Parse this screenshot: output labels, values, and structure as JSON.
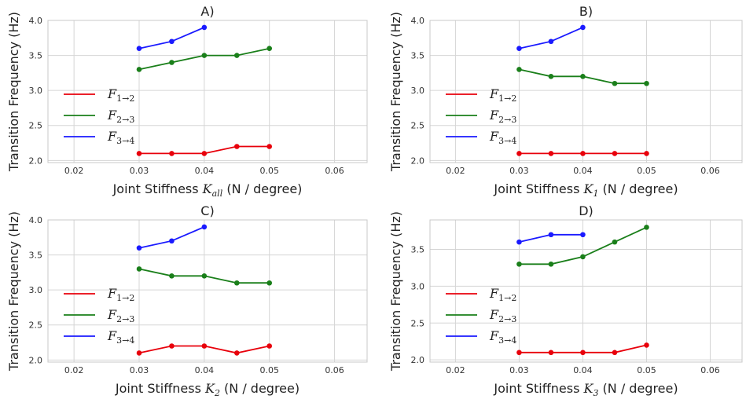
{
  "chart_data": [
    {
      "type": "line",
      "title": "A)",
      "xlabel": "Joint Stiffness",
      "xlabel_symbol": "K",
      "xlabel_symbol_sub": "all",
      "xlabel_unit": "(N / degree)",
      "ylabel": "Transition Frequency (Hz)",
      "xlim": [
        0.016,
        0.065
      ],
      "ylim": [
        1.97,
        4.0
      ],
      "xticks": [
        0.02,
        0.03,
        0.04,
        0.05,
        0.06
      ],
      "xtick_labels": [
        "0.02",
        "0.03",
        "0.04",
        "0.05",
        "0.06"
      ],
      "yticks": [
        2.0,
        2.5,
        3.0,
        3.5,
        4.0
      ],
      "ytick_labels": [
        "2.0",
        "2.5",
        "3.0",
        "3.5",
        "4.0"
      ],
      "grid": true,
      "legend_position": "center-left",
      "series": [
        {
          "name": "F",
          "sub": "1→2",
          "color": "#e8000b",
          "x": [
            0.03,
            0.035,
            0.04,
            0.045,
            0.05
          ],
          "y": [
            2.1,
            2.1,
            2.1,
            2.2,
            2.2
          ]
        },
        {
          "name": "F",
          "sub": "2→3",
          "color": "#1a7f1a",
          "x": [
            0.03,
            0.035,
            0.04,
            0.045,
            0.05
          ],
          "y": [
            3.3,
            3.4,
            3.5,
            3.5,
            3.6
          ]
        },
        {
          "name": "F",
          "sub": "3→4",
          "color": "#1a1aff",
          "x": [
            0.03,
            0.035,
            0.04
          ],
          "y": [
            3.6,
            3.7,
            3.9
          ]
        }
      ]
    },
    {
      "type": "line",
      "title": "B)",
      "xlabel": "Joint Stiffness",
      "xlabel_symbol": "K",
      "xlabel_symbol_sub": "1",
      "xlabel_unit": "(N / degree)",
      "ylabel": "Transition Frequency (Hz)",
      "xlim": [
        0.016,
        0.065
      ],
      "ylim": [
        1.97,
        4.0
      ],
      "xticks": [
        0.02,
        0.03,
        0.04,
        0.05,
        0.06
      ],
      "xtick_labels": [
        "0.02",
        "0.03",
        "0.04",
        "0.05",
        "0.06"
      ],
      "yticks": [
        2.0,
        2.5,
        3.0,
        3.5,
        4.0
      ],
      "ytick_labels": [
        "2.0",
        "2.5",
        "3.0",
        "3.5",
        "4.0"
      ],
      "grid": true,
      "legend_position": "center-left",
      "series": [
        {
          "name": "F",
          "sub": "1→2",
          "color": "#e8000b",
          "x": [
            0.03,
            0.035,
            0.04,
            0.045,
            0.05
          ],
          "y": [
            2.1,
            2.1,
            2.1,
            2.1,
            2.1
          ]
        },
        {
          "name": "F",
          "sub": "2→3",
          "color": "#1a7f1a",
          "x": [
            0.03,
            0.035,
            0.04,
            0.045,
            0.05
          ],
          "y": [
            3.3,
            3.2,
            3.2,
            3.1,
            3.1
          ]
        },
        {
          "name": "F",
          "sub": "3→4",
          "color": "#1a1aff",
          "x": [
            0.03,
            0.035,
            0.04
          ],
          "y": [
            3.6,
            3.7,
            3.9
          ]
        }
      ]
    },
    {
      "type": "line",
      "title": "C)",
      "xlabel": "Joint Stiffness",
      "xlabel_symbol": "K",
      "xlabel_symbol_sub": "2",
      "xlabel_unit": "(N / degree)",
      "ylabel": "Transition Frequency (Hz)",
      "xlim": [
        0.016,
        0.065
      ],
      "ylim": [
        1.97,
        4.0
      ],
      "xticks": [
        0.02,
        0.03,
        0.04,
        0.05,
        0.06
      ],
      "xtick_labels": [
        "0.02",
        "0.03",
        "0.04",
        "0.05",
        "0.06"
      ],
      "yticks": [
        2.0,
        2.5,
        3.0,
        3.5,
        4.0
      ],
      "ytick_labels": [
        "2.0",
        "2.5",
        "3.0",
        "3.5",
        "4.0"
      ],
      "grid": true,
      "legend_position": "center-left",
      "series": [
        {
          "name": "F",
          "sub": "1→2",
          "color": "#e8000b",
          "x": [
            0.03,
            0.035,
            0.04,
            0.045,
            0.05
          ],
          "y": [
            2.1,
            2.2,
            2.2,
            2.1,
            2.2
          ]
        },
        {
          "name": "F",
          "sub": "2→3",
          "color": "#1a7f1a",
          "x": [
            0.03,
            0.035,
            0.04,
            0.045,
            0.05
          ],
          "y": [
            3.3,
            3.2,
            3.2,
            3.1,
            3.1
          ]
        },
        {
          "name": "F",
          "sub": "3→4",
          "color": "#1a1aff",
          "x": [
            0.03,
            0.035,
            0.04
          ],
          "y": [
            3.6,
            3.7,
            3.9
          ]
        }
      ]
    },
    {
      "type": "line",
      "title": "D)",
      "xlabel": "Joint Stiffness",
      "xlabel_symbol": "K",
      "xlabel_symbol_sub": "3",
      "xlabel_unit": "(N / degree)",
      "ylabel": "Transition Frequency (Hz)",
      "xlim": [
        0.016,
        0.065
      ],
      "ylim": [
        1.97,
        3.9
      ],
      "xticks": [
        0.02,
        0.03,
        0.04,
        0.05,
        0.06
      ],
      "xtick_labels": [
        "0.02",
        "0.03",
        "0.04",
        "0.05",
        "0.06"
      ],
      "yticks": [
        2.0,
        2.5,
        3.0,
        3.5
      ],
      "ytick_labels": [
        "2.0",
        "2.5",
        "3.0",
        "3.5"
      ],
      "grid": true,
      "legend_position": "center-left",
      "series": [
        {
          "name": "F",
          "sub": "1→2",
          "color": "#e8000b",
          "x": [
            0.03,
            0.035,
            0.04,
            0.045,
            0.05
          ],
          "y": [
            2.1,
            2.1,
            2.1,
            2.1,
            2.2
          ]
        },
        {
          "name": "F",
          "sub": "2→3",
          "color": "#1a7f1a",
          "x": [
            0.03,
            0.035,
            0.04,
            0.045,
            0.05
          ],
          "y": [
            3.3,
            3.3,
            3.4,
            3.6,
            3.8
          ]
        },
        {
          "name": "F",
          "sub": "3→4",
          "color": "#1a1aff",
          "x": [
            0.03,
            0.035,
            0.04
          ],
          "y": [
            3.6,
            3.7,
            3.7
          ]
        }
      ]
    }
  ]
}
